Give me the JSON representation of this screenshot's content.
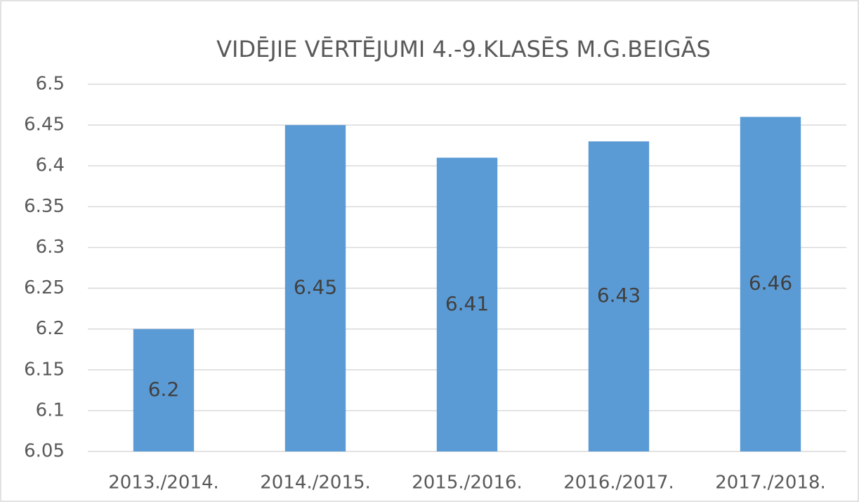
{
  "chart_data": {
    "type": "bar",
    "title": "VIDĒJIE VĒRTĒJUMI 4.-9.KLASĒS M.G.BEIGĀS",
    "categories": [
      "2013./2014.",
      "2014./2015.",
      "2015./2016.",
      "2016./2017.",
      "2017./2018."
    ],
    "values": [
      6.2,
      6.45,
      6.41,
      6.43,
      6.46
    ],
    "color": "#5b9bd5",
    "ylim": [
      6.05,
      6.5
    ],
    "yticks": [
      6.05,
      6.1,
      6.15,
      6.2,
      6.25,
      6.3,
      6.35,
      6.4,
      6.45,
      6.5
    ],
    "grid": true
  }
}
